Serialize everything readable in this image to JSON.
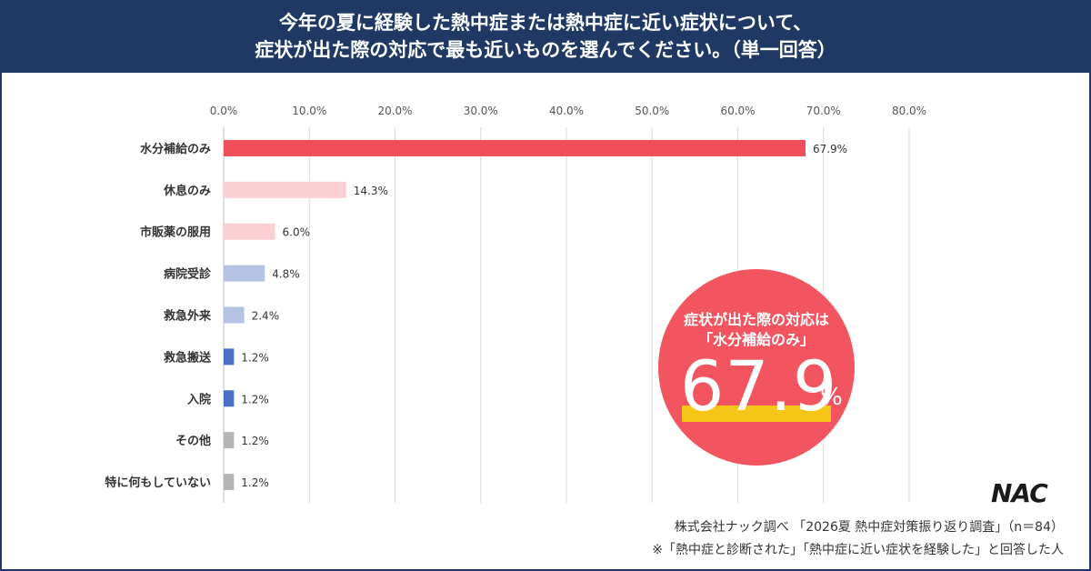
{
  "header": {
    "title_line1": "今年の夏に経験した熱中症または熱中症に近い症状について、",
    "title_line2": "症状が出た際の対応で最も近いものを選んでください。（単一回答）"
  },
  "chart_data": {
    "type": "bar",
    "orientation": "horizontal",
    "xlim": [
      0,
      80
    ],
    "xticks": [
      "0.0%",
      "10.0%",
      "20.0%",
      "30.0%",
      "40.0%",
      "50.0%",
      "60.0%",
      "70.0%",
      "80.0%"
    ],
    "categories": [
      "水分補給のみ",
      "休息のみ",
      "市販薬の服用",
      "病院受診",
      "救急外来",
      "救急搬送",
      "入院",
      "その他",
      "特に何もしていない"
    ],
    "values": [
      67.9,
      14.3,
      6.0,
      4.8,
      2.4,
      1.2,
      1.2,
      1.2,
      1.2
    ],
    "value_labels": [
      "67.9%",
      "14.3%",
      "6.0%",
      "4.8%",
      "2.4%",
      "1.2%",
      "1.2%",
      "1.2%",
      "1.2%"
    ],
    "colors": [
      "#f04e58",
      "#fbd0d4",
      "#fbd0d4",
      "#b4c3e4",
      "#b4c3e4",
      "#4a6fc4",
      "#4a6fc4",
      "#b5b5b5",
      "#b5b5b5"
    ],
    "grid": true
  },
  "badge": {
    "line1": "症状が出た際の対応は",
    "line2": "「水分補給のみ」",
    "value": "67.9",
    "unit": "%"
  },
  "logo": {
    "text": "NAC"
  },
  "footer": {
    "source": "株式会社ナック調べ 「2026夏 熱中症対策振り返り調査」（n＝84）",
    "note": "※「熱中症と診断された」「熱中症に近い症状を経験した」と回答した人"
  }
}
